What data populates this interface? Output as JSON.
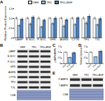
{
  "chart_data": [
    {
      "title": "A",
      "type": "bar",
      "categories": [
        "LAMP",
        "E-SOC",
        "P-SOC",
        "GFR",
        "AGRN",
        "CTTN",
        "TFU",
        "TXL"
      ],
      "series": [
        {
          "name": "VEH",
          "color": "#ffffff",
          "values": [
            1,
            1,
            1,
            1,
            1,
            1,
            1,
            1
          ],
          "errors": [
            0.08,
            0.07,
            0.09,
            0.06,
            0.08,
            0.07,
            0.09,
            0.08
          ]
        },
        {
          "name": "TFU",
          "color": "#9dc3e6",
          "values": [
            0.62,
            0.7,
            0.55,
            0.72,
            0.6,
            0.68,
            0.75,
            0.66
          ],
          "errors": [
            0.07,
            0.08,
            0.06,
            0.07,
            0.08,
            0.06,
            0.09,
            0.07
          ]
        },
        {
          "name": "TFU+BGF",
          "color": "#4f7fbf",
          "values": [
            0.95,
            1.05,
            0.9,
            1.0,
            0.92,
            1.02,
            1.1,
            0.97
          ],
          "errors": [
            0.09,
            0.1,
            0.08,
            0.09,
            0.1,
            0.08,
            0.11,
            0.09
          ]
        }
      ],
      "ylabel": "Relative Protein Expression",
      "ylim": [
        0,
        1.5
      ],
      "yticks": [
        0,
        0.5,
        {
          "value": 1,
          "label": "1.0"
        },
        1.5
      ],
      "legend": "top"
    },
    {
      "title": "C",
      "type": "bar",
      "categories": [
        "VEH",
        "TFU",
        "TFU+BGF"
      ],
      "values": [
        1,
        0.55,
        0.95
      ],
      "errors": [
        0.1,
        0.08,
        0.12
      ],
      "colors": [
        "#ffffff",
        "#9dc3e6",
        "#4f7fbf"
      ],
      "ylabel": "p-AMPK/AMPK",
      "ylim": [
        0,
        1.5
      ],
      "yticks": [
        0,
        0.5,
        {
          "value": 1,
          "label": "1.0"
        },
        1.5
      ]
    },
    {
      "title": "D",
      "type": "bar",
      "categories": [
        "VEH",
        "TFU",
        "TFU+BGF"
      ],
      "values": [
        1,
        0.6,
        1.1
      ],
      "errors": [
        0.09,
        0.07,
        0.13
      ],
      "colors": [
        "#ffffff",
        "#9dc3e6",
        "#4f7fbf"
      ],
      "ylabel": "Relative Expression",
      "ylim": [
        0,
        1.5
      ],
      "yticks": [
        0,
        0.5,
        {
          "value": 1,
          "label": "1.0"
        },
        1.5
      ]
    }
  ],
  "blots": [
    {
      "label": "B",
      "columns": [
        "VEH",
        "TFU",
        "TFU+BGF"
      ],
      "rows": [
        "LAMP",
        "E-SOC",
        "P-SOC",
        "GFR",
        "AGRN",
        "CTTN",
        "TFU",
        "TXL",
        "CSB"
      ]
    },
    {
      "label": "E",
      "columns": [
        "VEH",
        "TFU",
        "TFU+BGF"
      ],
      "rows": [
        "P-AMPK",
        "T-AMPK",
        "CSB"
      ]
    }
  ]
}
